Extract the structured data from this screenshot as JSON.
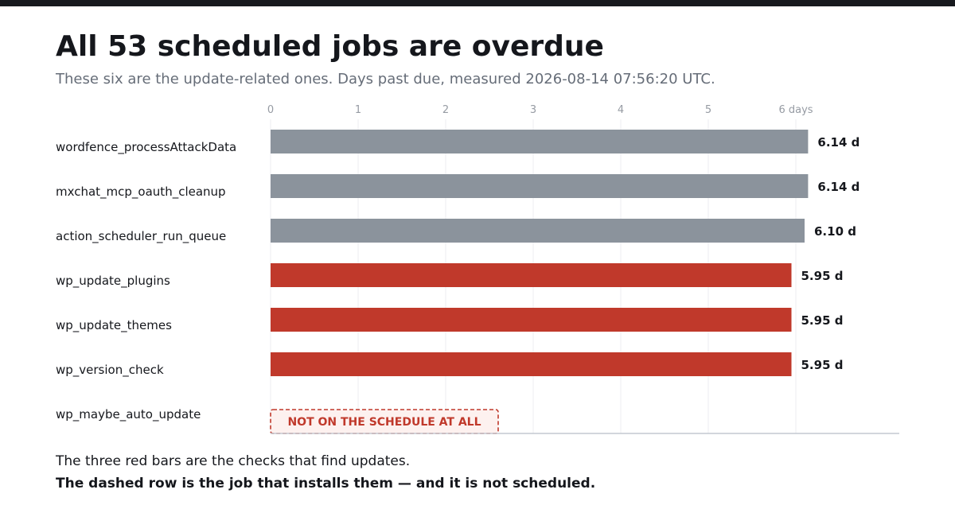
{
  "header": {
    "title": "All 53 scheduled jobs are overdue",
    "subtitle": "These six are the update-related ones. Days past due, measured 2026-08-14 07:56:20 UTC."
  },
  "chart_data": {
    "type": "bar",
    "orientation": "horizontal",
    "title": "All 53 scheduled jobs are overdue",
    "x_unit": "days",
    "xlim": [
      0,
      6.5
    ],
    "x_ticks": [
      0,
      1,
      2,
      3,
      4,
      5,
      6
    ],
    "x_tick_labels": [
      "0",
      "1",
      "2",
      "3",
      "4",
      "5",
      "6 days"
    ],
    "grid": true,
    "categories": [
      "wordfence_processAttackData",
      "mxchat_mcp_oauth_cleanup",
      "action_scheduler_run_queue",
      "wp_update_plugins",
      "wp_update_themes",
      "wp_version_check",
      "wp_maybe_auto_update"
    ],
    "values": [
      6.14,
      6.14,
      6.1,
      5.95,
      5.95,
      5.95,
      null
    ],
    "value_labels": [
      "6.14 d",
      "6.14 d",
      "6.10 d",
      "5.95 d",
      "5.95 d",
      "5.95 d",
      ""
    ],
    "highlighted": [
      false,
      false,
      false,
      true,
      true,
      true,
      false
    ],
    "unscheduled_label": "NOT ON THE SCHEDULE AT ALL",
    "colors": {
      "default_bar": "#8b939c",
      "highlight_bar": "#c0392b",
      "unscheduled_border": "#c0392b",
      "unscheduled_fill": "#fdf1ef",
      "grid": "#eceef1",
      "axis": "#c3c8d0",
      "tick_text": "#969ba3"
    }
  },
  "footer": {
    "line1": "The three red bars are the checks that find updates.",
    "line2": "The dashed row is the job that installs them — and it is not scheduled."
  }
}
